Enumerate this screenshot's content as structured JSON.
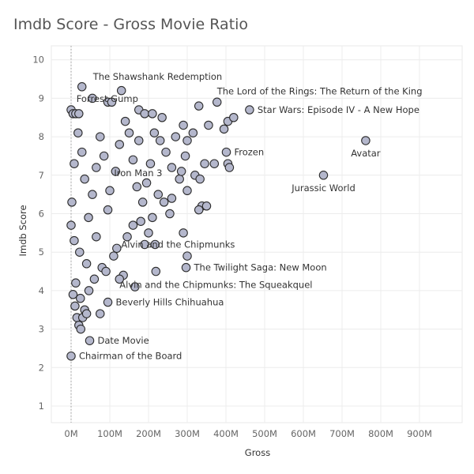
{
  "chart_data": {
    "type": "scatter",
    "title": "Imdb Score - Gross Movie Ratio",
    "xlabel": "Gross",
    "ylabel": "Imdb Score",
    "x_unit": "M",
    "xlim": [
      -15,
      1000
    ],
    "ylim": [
      0.5,
      10.4
    ],
    "x_ticks": [
      0,
      100,
      200,
      300,
      400,
      500,
      600,
      700,
      800,
      900
    ],
    "x_tick_labels": [
      "0M",
      "100M",
      "200M",
      "300M",
      "400M",
      "500M",
      "600M",
      "700M",
      "800M",
      "900M"
    ],
    "y_ticks": [
      1,
      2,
      3,
      4,
      5,
      6,
      7,
      8,
      9,
      10
    ],
    "y_tick_labels": [
      "1",
      "2",
      "3",
      "4",
      "5",
      "6",
      "7",
      "8",
      "9",
      "10"
    ],
    "grid": true,
    "reference_line_x": 0,
    "marker_color": "#b4b7cc",
    "marker_edge_color": "#2b2b2b",
    "annotated_points": [
      {
        "label": "The Shawshank Redemption",
        "x": 28,
        "y": 9.3
      },
      {
        "label": "Forrest Gump",
        "x": 330,
        "y": 8.8
      },
      {
        "label": "The Lord of the Rings: The Return of the King",
        "x": 377,
        "y": 8.9
      },
      {
        "label": "Star Wars: Episode IV - A New Hope",
        "x": 461,
        "y": 8.7
      },
      {
        "label": "Frozen",
        "x": 401,
        "y": 7.6
      },
      {
        "label": "Avatar",
        "x": 761,
        "y": 7.9
      },
      {
        "label": "Iron Man 3",
        "x": 409,
        "y": 7.2
      },
      {
        "label": "Jurassic World",
        "x": 652,
        "y": 7.0
      },
      {
        "label": "Alvin and the Chipmunks",
        "x": 217,
        "y": 5.2
      },
      {
        "label": "The Twilight Saga: New Moon",
        "x": 297,
        "y": 4.6
      },
      {
        "label": "Alvin and the Chipmunks: The Squeakquel",
        "x": 219,
        "y": 4.5
      },
      {
        "label": "Beverly Hills Chihuahua",
        "x": 95,
        "y": 3.7
      },
      {
        "label": "Date Movie",
        "x": 48,
        "y": 2.7
      },
      {
        "label": "Chairman of the Board",
        "x": 0,
        "y": 2.3
      }
    ],
    "points": [
      {
        "x": 130,
        "y": 9.2
      },
      {
        "x": 0,
        "y": 8.7
      },
      {
        "x": 5,
        "y": 8.6
      },
      {
        "x": 12,
        "y": 8.6
      },
      {
        "x": 20,
        "y": 8.6
      },
      {
        "x": 55,
        "y": 9.0
      },
      {
        "x": 95,
        "y": 8.9
      },
      {
        "x": 105,
        "y": 8.9
      },
      {
        "x": 175,
        "y": 8.7
      },
      {
        "x": 190,
        "y": 8.6
      },
      {
        "x": 210,
        "y": 8.6
      },
      {
        "x": 235,
        "y": 8.5
      },
      {
        "x": 290,
        "y": 8.3
      },
      {
        "x": 315,
        "y": 8.1
      },
      {
        "x": 355,
        "y": 8.3
      },
      {
        "x": 395,
        "y": 8.2
      },
      {
        "x": 405,
        "y": 8.4
      },
      {
        "x": 420,
        "y": 8.5
      },
      {
        "x": 295,
        "y": 7.5
      },
      {
        "x": 300,
        "y": 7.9
      },
      {
        "x": 345,
        "y": 7.3
      },
      {
        "x": 370,
        "y": 7.3
      },
      {
        "x": 405,
        "y": 7.3
      },
      {
        "x": 320,
        "y": 7.0
      },
      {
        "x": 333,
        "y": 6.9
      },
      {
        "x": 338,
        "y": 6.2
      },
      {
        "x": 350,
        "y": 6.2
      },
      {
        "x": 330,
        "y": 6.1
      },
      {
        "x": 300,
        "y": 6.6
      },
      {
        "x": 280,
        "y": 6.9
      },
      {
        "x": 290,
        "y": 5.5
      },
      {
        "x": 300,
        "y": 4.9
      },
      {
        "x": 260,
        "y": 6.4
      },
      {
        "x": 255,
        "y": 6.0
      },
      {
        "x": 190,
        "y": 5.2
      },
      {
        "x": 180,
        "y": 5.8
      },
      {
        "x": 165,
        "y": 4.1
      },
      {
        "x": 135,
        "y": 4.4
      },
      {
        "x": 125,
        "y": 4.3
      },
      {
        "x": 75,
        "y": 3.4
      },
      {
        "x": 60,
        "y": 4.3
      },
      {
        "x": 15,
        "y": 3.3
      },
      {
        "x": 20,
        "y": 3.1
      },
      {
        "x": 25,
        "y": 3.0
      },
      {
        "x": 30,
        "y": 3.3
      },
      {
        "x": 35,
        "y": 3.5
      },
      {
        "x": 10,
        "y": 3.6
      },
      {
        "x": 40,
        "y": 3.4
      },
      {
        "x": 80,
        "y": 4.6
      },
      {
        "x": 110,
        "y": 4.9
      },
      {
        "x": 5,
        "y": 3.9
      },
      {
        "x": 12,
        "y": 4.2
      },
      {
        "x": 24,
        "y": 3.8
      },
      {
        "x": 46,
        "y": 4.0
      },
      {
        "x": 90,
        "y": 4.5
      },
      {
        "x": 8,
        "y": 5.3
      },
      {
        "x": 22,
        "y": 5.0
      },
      {
        "x": 40,
        "y": 4.7
      },
      {
        "x": 65,
        "y": 5.4
      },
      {
        "x": 118,
        "y": 5.1
      },
      {
        "x": 145,
        "y": 5.4
      },
      {
        "x": 160,
        "y": 5.7
      },
      {
        "x": 210,
        "y": 5.9
      },
      {
        "x": 240,
        "y": 6.3
      },
      {
        "x": 260,
        "y": 7.2
      },
      {
        "x": 245,
        "y": 7.6
      },
      {
        "x": 230,
        "y": 7.9
      },
      {
        "x": 215,
        "y": 8.1
      },
      {
        "x": 205,
        "y": 7.3
      },
      {
        "x": 195,
        "y": 6.8
      },
      {
        "x": 185,
        "y": 6.3
      },
      {
        "x": 170,
        "y": 6.7
      },
      {
        "x": 160,
        "y": 7.4
      },
      {
        "x": 150,
        "y": 8.1
      },
      {
        "x": 140,
        "y": 8.4
      },
      {
        "x": 125,
        "y": 7.8
      },
      {
        "x": 115,
        "y": 7.1
      },
      {
        "x": 100,
        "y": 6.6
      },
      {
        "x": 95,
        "y": 6.1
      },
      {
        "x": 85,
        "y": 7.5
      },
      {
        "x": 75,
        "y": 8.0
      },
      {
        "x": 65,
        "y": 7.2
      },
      {
        "x": 55,
        "y": 6.5
      },
      {
        "x": 45,
        "y": 5.9
      },
      {
        "x": 35,
        "y": 6.9
      },
      {
        "x": 28,
        "y": 7.6
      },
      {
        "x": 18,
        "y": 8.1
      },
      {
        "x": 8,
        "y": 7.3
      },
      {
        "x": 2,
        "y": 6.3
      },
      {
        "x": 0,
        "y": 5.7
      },
      {
        "x": 270,
        "y": 8.0
      },
      {
        "x": 285,
        "y": 7.1
      },
      {
        "x": 225,
        "y": 6.5
      },
      {
        "x": 200,
        "y": 5.5
      },
      {
        "x": 175,
        "y": 7.9
      }
    ]
  }
}
